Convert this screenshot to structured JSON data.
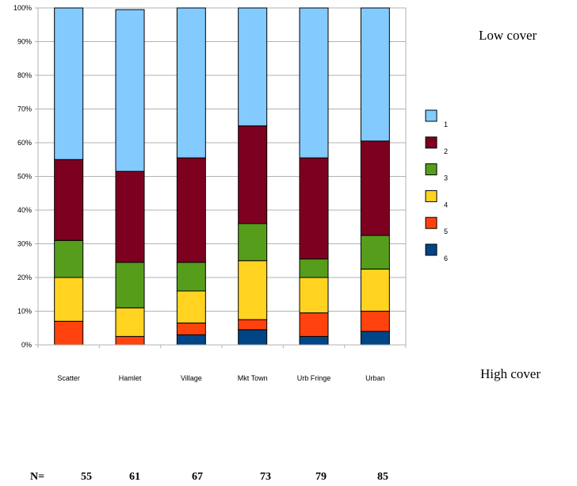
{
  "chart_data": {
    "type": "bar",
    "stacked": true,
    "percent": true,
    "categories": [
      "Scatter",
      "Hamlet",
      "Village",
      "Mkt Town",
      "Urb Fringe",
      "Urban"
    ],
    "series": [
      {
        "name": "6",
        "color": "#004586",
        "values": [
          0,
          0,
          3,
          4.5,
          2.5,
          4
        ]
      },
      {
        "name": "5",
        "color": "#ff420e",
        "values": [
          7,
          2.5,
          3.5,
          3,
          7,
          6
        ]
      },
      {
        "name": "4",
        "color": "#ffd320",
        "values": [
          13,
          8.5,
          9.5,
          17.5,
          10.5,
          12.5
        ]
      },
      {
        "name": "3",
        "color": "#579d1c",
        "values": [
          11,
          13.5,
          8.5,
          11,
          5.5,
          10
        ]
      },
      {
        "name": "2",
        "color": "#7e0021",
        "values": [
          24,
          27,
          31,
          29,
          30,
          28
        ]
      },
      {
        "name": "1",
        "color": "#83caff",
        "values": [
          45,
          48,
          44.5,
          35,
          44.5,
          39.5
        ]
      }
    ],
    "yticks": [
      "0%",
      "10%",
      "20%",
      "30%",
      "40%",
      "50%",
      "60%",
      "70%",
      "80%",
      "90%",
      "100%"
    ],
    "ylim": [
      0,
      100
    ],
    "grid": true,
    "legend": {
      "placement": "right",
      "entries": [
        "1",
        "2",
        "3",
        "4",
        "5",
        "6"
      ]
    }
  },
  "annotations": {
    "top": "Low cover",
    "bottom": "High cover"
  },
  "n_row": {
    "label": "N=",
    "values": [
      "55",
      "61",
      "67",
      "73",
      "79",
      "85"
    ]
  }
}
